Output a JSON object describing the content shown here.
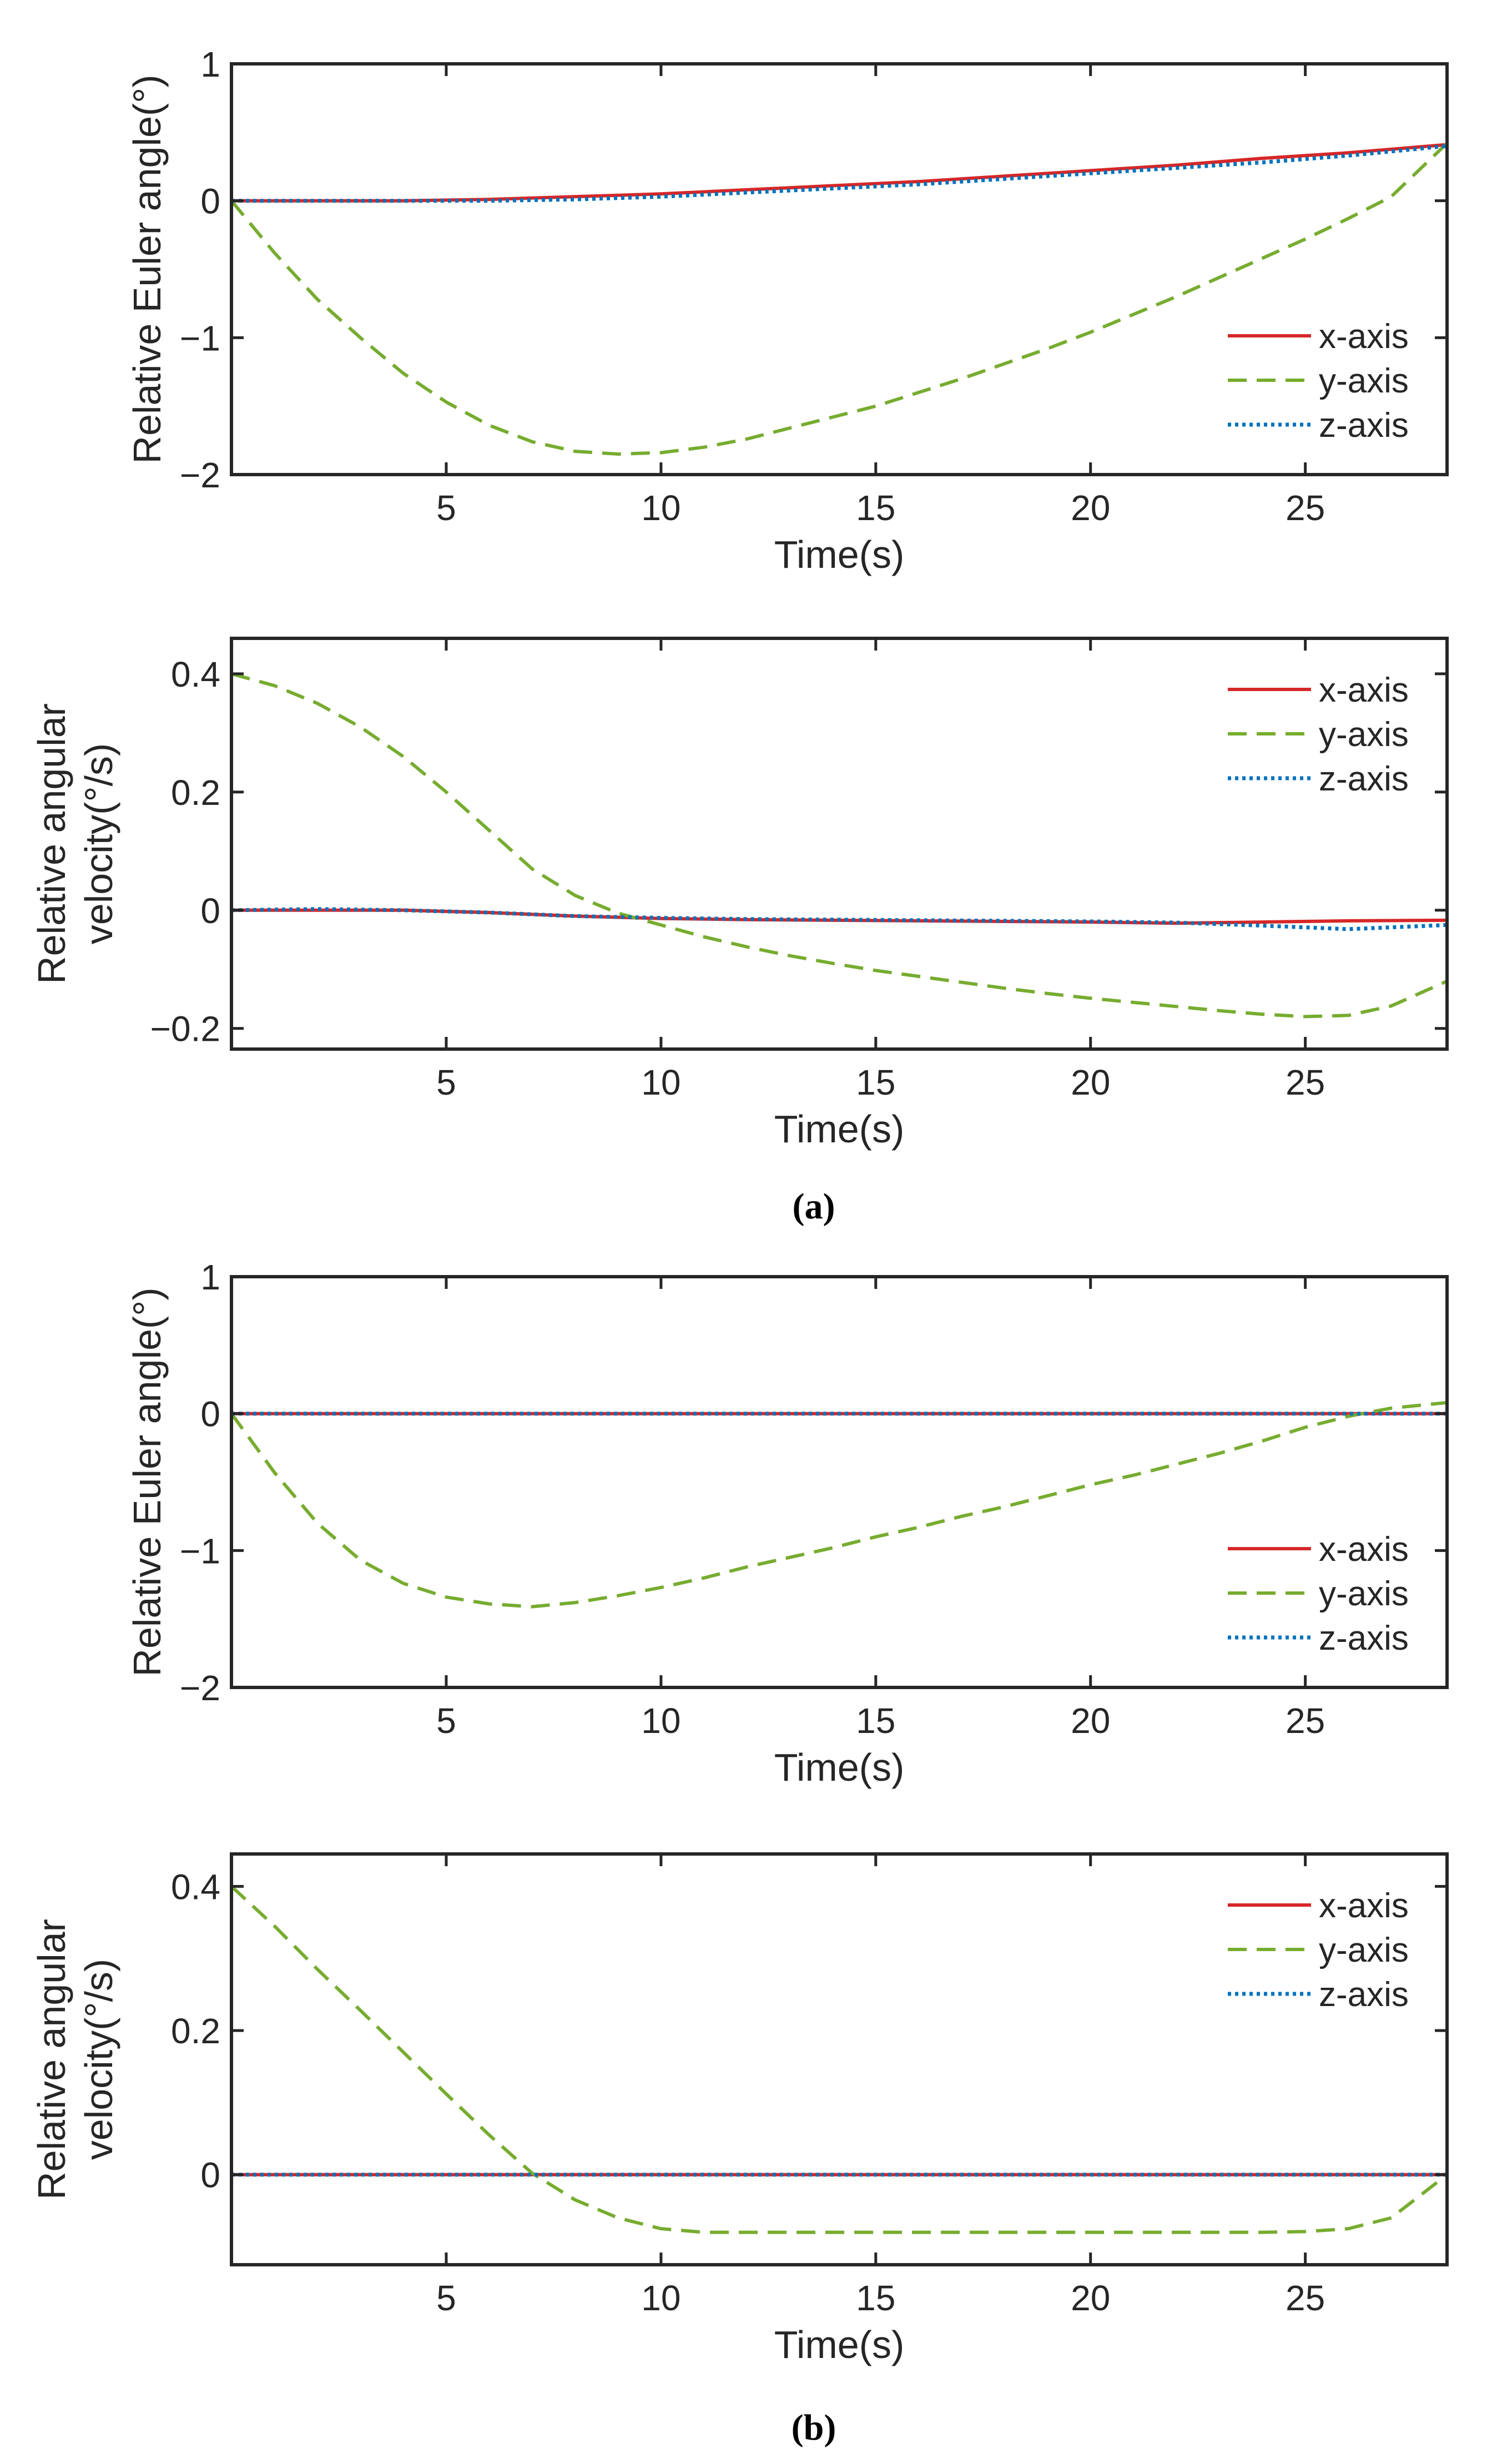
{
  "chart_data": [
    {
      "type": "line",
      "panel": "a",
      "xlabel": "Time(s)",
      "ylabel": "Relative Euler angle(°)",
      "xlim": [
        0,
        28.3
      ],
      "ylim": [
        -2,
        1
      ],
      "xticks": [
        5,
        10,
        15,
        20,
        25
      ],
      "yticks": [
        1,
        0,
        -1,
        -2
      ],
      "ytick_labels": [
        "1",
        "0",
        "−1",
        "−2"
      ],
      "legend": "inside-right",
      "grid": false,
      "series": [
        {
          "name": "x-axis",
          "color": "#d62728",
          "style": "solid",
          "x": [
            0,
            2,
            4,
            6,
            8,
            10,
            12,
            14,
            16,
            18,
            20,
            22,
            24,
            26,
            28.3
          ],
          "y": [
            0,
            0,
            0,
            0.01,
            0.03,
            0.05,
            0.08,
            0.11,
            0.14,
            0.18,
            0.22,
            0.26,
            0.31,
            0.35,
            0.41
          ]
        },
        {
          "name": "y-axis",
          "color": "#77ac30",
          "style": "dashed",
          "x": [
            0,
            1,
            2,
            3,
            4,
            5,
            6,
            7,
            8,
            9,
            10,
            11,
            12,
            13,
            14,
            15,
            16,
            17,
            18,
            19,
            20,
            21,
            22,
            23,
            24,
            25,
            26,
            27,
            28.3
          ],
          "y": [
            0,
            -0.38,
            -0.72,
            -1.0,
            -1.26,
            -1.47,
            -1.64,
            -1.76,
            -1.83,
            -1.85,
            -1.84,
            -1.8,
            -1.74,
            -1.66,
            -1.58,
            -1.5,
            -1.4,
            -1.3,
            -1.19,
            -1.08,
            -0.96,
            -0.83,
            -0.7,
            -0.56,
            -0.42,
            -0.28,
            -0.13,
            0.03,
            0.42
          ]
        },
        {
          "name": "z-axis",
          "color": "#0072bd",
          "style": "dotted",
          "x": [
            0,
            2,
            4,
            6,
            8,
            10,
            12,
            14,
            16,
            18,
            20,
            22,
            24,
            26,
            28.3
          ],
          "y": [
            0,
            0,
            0,
            0,
            0.01,
            0.03,
            0.06,
            0.09,
            0.12,
            0.16,
            0.2,
            0.24,
            0.28,
            0.33,
            0.4
          ]
        }
      ]
    },
    {
      "type": "line",
      "panel": "a",
      "xlabel": "Time(s)",
      "ylabel": "Relative angular velocity(°/s)",
      "xlim": [
        0,
        28.3
      ],
      "ylim": [
        -0.235,
        0.46
      ],
      "xticks": [
        5,
        10,
        15,
        20,
        25
      ],
      "yticks": [
        0.4,
        0.2,
        0,
        -0.2
      ],
      "ytick_labels": [
        "0.4",
        "0.2",
        "0",
        "−0.2"
      ],
      "legend": "top-right",
      "grid": false,
      "series": [
        {
          "name": "x-axis",
          "color": "#d62728",
          "style": "solid",
          "x": [
            0,
            2,
            4,
            6,
            8,
            10,
            12,
            14,
            16,
            18,
            20,
            22,
            24,
            26,
            28.3
          ],
          "y": [
            0,
            0,
            0,
            -0.004,
            -0.01,
            -0.014,
            -0.016,
            -0.017,
            -0.018,
            -0.019,
            -0.02,
            -0.022,
            -0.02,
            -0.018,
            -0.017
          ]
        },
        {
          "name": "y-axis",
          "color": "#77ac30",
          "style": "dashed",
          "x": [
            0,
            1,
            2,
            3,
            4,
            5,
            6,
            7,
            8,
            9,
            10,
            11,
            12,
            13,
            14,
            15,
            16,
            17,
            18,
            19,
            20,
            21,
            22,
            23,
            24,
            25,
            26,
            27,
            28.3
          ],
          "y": [
            0.4,
            0.38,
            0.35,
            0.31,
            0.26,
            0.2,
            0.135,
            0.07,
            0.025,
            -0.005,
            -0.025,
            -0.045,
            -0.062,
            -0.077,
            -0.09,
            -0.102,
            -0.112,
            -0.122,
            -0.132,
            -0.141,
            -0.149,
            -0.156,
            -0.163,
            -0.17,
            -0.176,
            -0.18,
            -0.178,
            -0.162,
            -0.12
          ]
        },
        {
          "name": "z-axis",
          "color": "#0072bd",
          "style": "dotted",
          "x": [
            0,
            2,
            4,
            6,
            8,
            10,
            12,
            14,
            16,
            18,
            20,
            22,
            24,
            26,
            28.3
          ],
          "y": [
            0,
            0.002,
            0,
            -0.004,
            -0.01,
            -0.013,
            -0.015,
            -0.016,
            -0.017,
            -0.018,
            -0.019,
            -0.021,
            -0.026,
            -0.032,
            -0.025
          ]
        }
      ]
    },
    {
      "type": "line",
      "panel": "b",
      "xlabel": "Time(s)",
      "ylabel": "Relative Euler angle(°)",
      "xlim": [
        0,
        28.3
      ],
      "ylim": [
        -2,
        1
      ],
      "xticks": [
        5,
        10,
        15,
        20,
        25
      ],
      "yticks": [
        1,
        0,
        -1,
        -2
      ],
      "ytick_labels": [
        "1",
        "0",
        "−1",
        "−2"
      ],
      "legend": "inside-right",
      "grid": false,
      "series": [
        {
          "name": "x-axis",
          "color": "#d62728",
          "style": "solid",
          "x": [
            0,
            28.3
          ],
          "y": [
            0,
            0
          ]
        },
        {
          "name": "y-axis",
          "color": "#77ac30",
          "style": "dashed",
          "x": [
            0,
            1,
            2,
            3,
            4,
            5,
            6,
            7,
            8,
            9,
            10,
            11,
            12,
            13,
            14,
            15,
            16,
            17,
            18,
            19,
            20,
            21,
            22,
            23,
            24,
            25,
            26,
            27,
            28.3
          ],
          "y": [
            0,
            -0.43,
            -0.8,
            -1.07,
            -1.24,
            -1.34,
            -1.39,
            -1.41,
            -1.38,
            -1.33,
            -1.27,
            -1.2,
            -1.12,
            -1.05,
            -0.98,
            -0.9,
            -0.83,
            -0.75,
            -0.68,
            -0.6,
            -0.52,
            -0.45,
            -0.37,
            -0.29,
            -0.2,
            -0.1,
            -0.02,
            0.04,
            0.08
          ]
        },
        {
          "name": "z-axis",
          "color": "#0072bd",
          "style": "dotted",
          "x": [
            0,
            28.3
          ],
          "y": [
            0,
            0
          ]
        }
      ]
    },
    {
      "type": "line",
      "panel": "b",
      "xlabel": "Time(s)",
      "ylabel": "Relative angular velocity(°/s)",
      "xlim": [
        0,
        28.3
      ],
      "ylim": [
        -0.125,
        0.445
      ],
      "xticks": [
        5,
        10,
        15,
        20,
        25
      ],
      "yticks": [
        0.4,
        0.2,
        0
      ],
      "ytick_labels": [
        "0.4",
        "0.2",
        "0"
      ],
      "legend": "top-right",
      "grid": false,
      "series": [
        {
          "name": "x-axis",
          "color": "#d62728",
          "style": "solid",
          "x": [
            0,
            28.3
          ],
          "y": [
            0,
            0
          ]
        },
        {
          "name": "y-axis",
          "color": "#77ac30",
          "style": "dashed",
          "x": [
            0,
            1,
            2,
            3,
            4,
            5,
            6,
            7,
            8,
            9,
            10,
            11,
            12,
            13,
            14,
            15,
            16,
            17,
            18,
            19,
            20,
            21,
            22,
            23,
            24,
            25,
            26,
            27,
            28.3
          ],
          "y": [
            0.4,
            0.345,
            0.285,
            0.228,
            0.17,
            0.112,
            0.055,
            0.002,
            -0.035,
            -0.06,
            -0.075,
            -0.08,
            -0.08,
            -0.08,
            -0.08,
            -0.08,
            -0.08,
            -0.08,
            -0.08,
            -0.08,
            -0.08,
            -0.08,
            -0.08,
            -0.08,
            -0.08,
            -0.079,
            -0.075,
            -0.06,
            0
          ]
        },
        {
          "name": "z-axis",
          "color": "#0072bd",
          "style": "dotted",
          "x": [
            0,
            28.3
          ],
          "y": [
            0,
            0
          ]
        }
      ]
    }
  ],
  "captions": [
    "(a)",
    "(b)"
  ]
}
